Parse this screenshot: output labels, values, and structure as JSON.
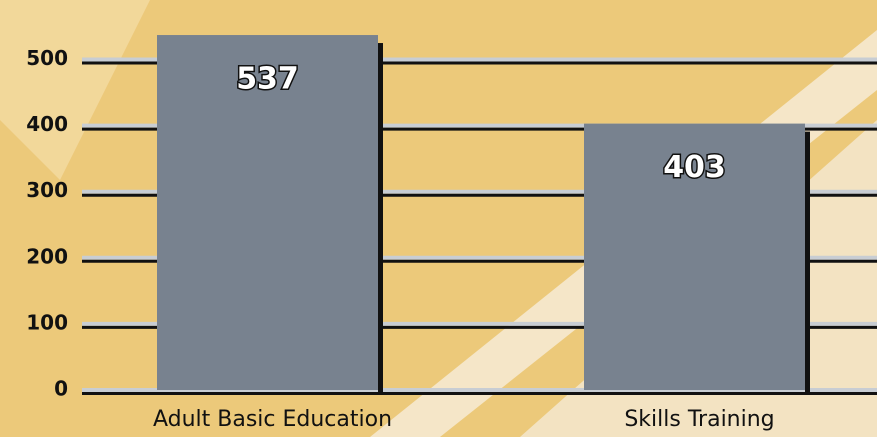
{
  "chart_data": {
    "type": "bar",
    "categories": [
      "Adult Basic Education",
      "Skills Training"
    ],
    "values": [
      537,
      403
    ],
    "color": "#78828f",
    "ylim": [
      0,
      590
    ],
    "yticks": [
      0,
      100,
      200,
      300,
      400,
      500
    ],
    "grid": true
  }
}
